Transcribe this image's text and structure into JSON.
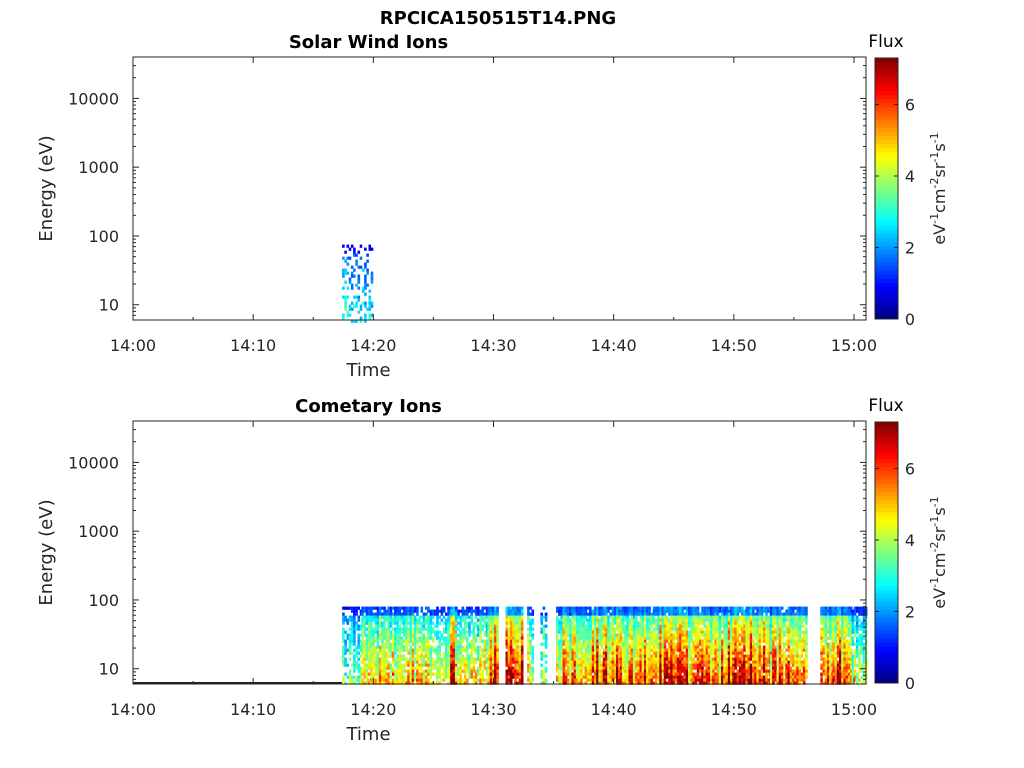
{
  "figure_title": "RPCICA150515T14.PNG",
  "chart_data": [
    {
      "type": "heatmap",
      "title": "Solar Wind Ions",
      "xlabel": "Time",
      "ylabel": "Energy (eV)",
      "x_ticks": [
        "14:00",
        "14:10",
        "14:20",
        "14:30",
        "14:40",
        "14:50",
        "15:00"
      ],
      "x_range": [
        "14:00",
        "15:01"
      ],
      "y_scale": "log",
      "y_ticks": [
        10,
        100,
        1000,
        10000
      ],
      "y_tick_labels": [
        "10",
        "100",
        "1000",
        "10000"
      ],
      "y_range": [
        6,
        40000
      ],
      "colorbar": {
        "title": "Flux",
        "unit": "eV-1cm-2sr-1s-1",
        "range": [
          0,
          7.3
        ],
        "ticks": [
          0,
          2,
          4,
          6
        ],
        "colormap": "jet"
      },
      "bursts": [
        {
          "start": 17.4,
          "end": 19.9,
          "emax": 75,
          "level": 2.6,
          "density": 0.35,
          "peak_at_low_energy": false
        }
      ]
    },
    {
      "type": "heatmap",
      "title": "Cometary Ions",
      "xlabel": "Time",
      "ylabel": "Energy (eV)",
      "x_ticks": [
        "14:00",
        "14:10",
        "14:20",
        "14:30",
        "14:40",
        "14:50",
        "15:00"
      ],
      "x_range": [
        "14:00",
        "15:01"
      ],
      "y_scale": "log",
      "y_ticks": [
        10,
        100,
        1000,
        10000
      ],
      "y_tick_labels": [
        "10",
        "100",
        "1000",
        "10000"
      ],
      "y_range": [
        6,
        40000
      ],
      "colorbar": {
        "title": "Flux",
        "unit": "eV-1cm-2sr-1s-1",
        "range": [
          0,
          7.3
        ],
        "ticks": [
          0,
          2,
          4,
          6
        ],
        "colormap": "jet"
      },
      "bursts": [
        {
          "start": 17.4,
          "end": 19.0,
          "emax": 80,
          "level": 3.3,
          "density": 0.6
        },
        {
          "start": 19.0,
          "end": 21.0,
          "emax": 80,
          "level": 4.6,
          "density": 0.9
        },
        {
          "start": 21.0,
          "end": 24.5,
          "emax": 80,
          "level": 4.9,
          "density": 0.85
        },
        {
          "start": 24.5,
          "end": 26.4,
          "emax": 80,
          "level": 4.2,
          "density": 0.75
        },
        {
          "start": 26.4,
          "end": 26.8,
          "emax": 80,
          "level": 6.8,
          "density": 1.0
        },
        {
          "start": 26.8,
          "end": 29.5,
          "emax": 80,
          "level": 4.4,
          "density": 0.8
        },
        {
          "start": 29.5,
          "end": 30.3,
          "emax": 80,
          "level": 6.7,
          "density": 1.0
        },
        {
          "start": 31.0,
          "end": 32.3,
          "emax": 80,
          "level": 6.5,
          "density": 0.95
        },
        {
          "start": 32.8,
          "end": 33.3,
          "emax": 80,
          "level": 4.6,
          "density": 0.8
        },
        {
          "start": 33.9,
          "end": 34.4,
          "emax": 80,
          "level": 3.9,
          "density": 0.6
        },
        {
          "start": 35.2,
          "end": 38.0,
          "emax": 80,
          "level": 5.3,
          "density": 0.95
        },
        {
          "start": 38.0,
          "end": 40.5,
          "emax": 80,
          "level": 5.8,
          "density": 0.95
        },
        {
          "start": 40.5,
          "end": 42.7,
          "emax": 80,
          "level": 5.4,
          "density": 0.95
        },
        {
          "start": 42.7,
          "end": 46.0,
          "emax": 80,
          "level": 6.1,
          "density": 0.95
        },
        {
          "start": 46.0,
          "end": 49.5,
          "emax": 80,
          "level": 5.7,
          "density": 0.95
        },
        {
          "start": 49.5,
          "end": 53.0,
          "emax": 80,
          "level": 6.5,
          "density": 0.95
        },
        {
          "start": 53.0,
          "end": 56.0,
          "emax": 80,
          "level": 5.4,
          "density": 0.9
        },
        {
          "start": 57.2,
          "end": 58.2,
          "emax": 80,
          "level": 5.1,
          "density": 0.9
        },
        {
          "start": 58.2,
          "end": 59.8,
          "emax": 80,
          "level": 5.8,
          "density": 0.95
        },
        {
          "start": 59.8,
          "end": 61.0,
          "emax": 80,
          "level": 4.2,
          "density": 0.75
        }
      ]
    }
  ]
}
